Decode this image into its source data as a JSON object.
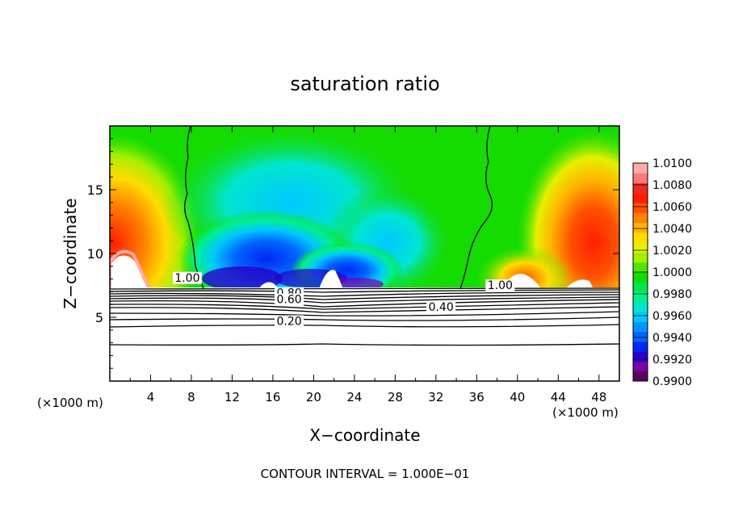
{
  "chart_data": {
    "type": "heatmap",
    "title": "saturation ratio",
    "xlabel": "X−coordinate",
    "ylabel": "Z−coordinate",
    "x_unit_left": "(×1000 m)",
    "x_unit_right": "(×1000 m)",
    "footer": "CONTOUR INTERVAL = 1.000E−01",
    "xlim": [
      0,
      50
    ],
    "ylim": [
      0,
      20
    ],
    "x_ticks": [
      4,
      8,
      12,
      16,
      20,
      24,
      28,
      32,
      36,
      40,
      44,
      48
    ],
    "x_tick_labels": [
      "4",
      "8",
      "12",
      "16",
      "20",
      "24",
      "28",
      "32",
      "36",
      "40",
      "44",
      "48"
    ],
    "y_ticks": [
      5,
      10,
      15
    ],
    "y_tick_labels": [
      "5",
      "10",
      "15"
    ],
    "legend_placement": "right",
    "colorbar": {
      "min": 0.99,
      "max": 1.01,
      "labels": [
        "1.0100",
        "1.0080",
        "1.0060",
        "1.0040",
        "1.0020",
        "1.0000",
        "0.9980",
        "0.9960",
        "0.9940",
        "0.9920",
        "0.9900"
      ],
      "colors": [
        "#5a005a",
        "#7a00a8",
        "#2800c8",
        "#0028f0",
        "#0064ff",
        "#0096ff",
        "#00c8ff",
        "#00e6d0",
        "#00f08c",
        "#00e650",
        "#14dc00",
        "#50e600",
        "#a0f000",
        "#e6f000",
        "#ffdc00",
        "#ffb400",
        "#ff8200",
        "#ff5000",
        "#ff1e00",
        "#f02828",
        "#ff7878",
        "#ffaaaa"
      ]
    },
    "contour_labels": [
      {
        "x": 7.6,
        "z": 7.8,
        "text": "1.00"
      },
      {
        "x": 38.3,
        "z": 7.2,
        "text": "1.00"
      },
      {
        "x": 17.6,
        "z": 6.6,
        "text": "0.80"
      },
      {
        "x": 17.6,
        "z": 6.1,
        "text": "0.60"
      },
      {
        "x": 32.5,
        "z": 5.5,
        "text": "0.40"
      },
      {
        "x": 17.6,
        "z": 4.4,
        "text": "0.20"
      }
    ]
  }
}
